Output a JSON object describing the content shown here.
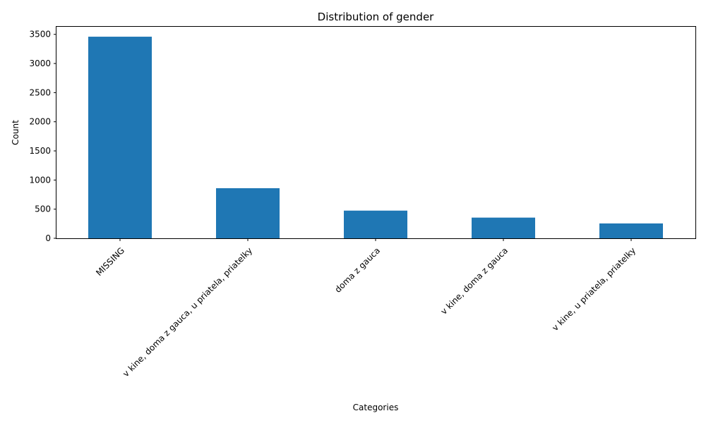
{
  "chart_data": {
    "type": "bar",
    "title": "Distribution of gender",
    "xlabel": "Categories",
    "ylabel": "Count",
    "categories": [
      "MISSING",
      "v kine, doma z gauca, u priatela, priatelky",
      "doma z gauca",
      "v kine, doma z gauca",
      "v kine, u priatela, priatelky"
    ],
    "values": [
      3460,
      860,
      475,
      355,
      255
    ],
    "ylim": [
      0,
      3630
    ],
    "yticks": [
      0,
      500,
      1000,
      1500,
      2000,
      2500,
      3000,
      3500
    ],
    "xtick_rotation_deg": 45,
    "bar_color": "#1f77b4",
    "grid": false,
    "legend": "none"
  }
}
